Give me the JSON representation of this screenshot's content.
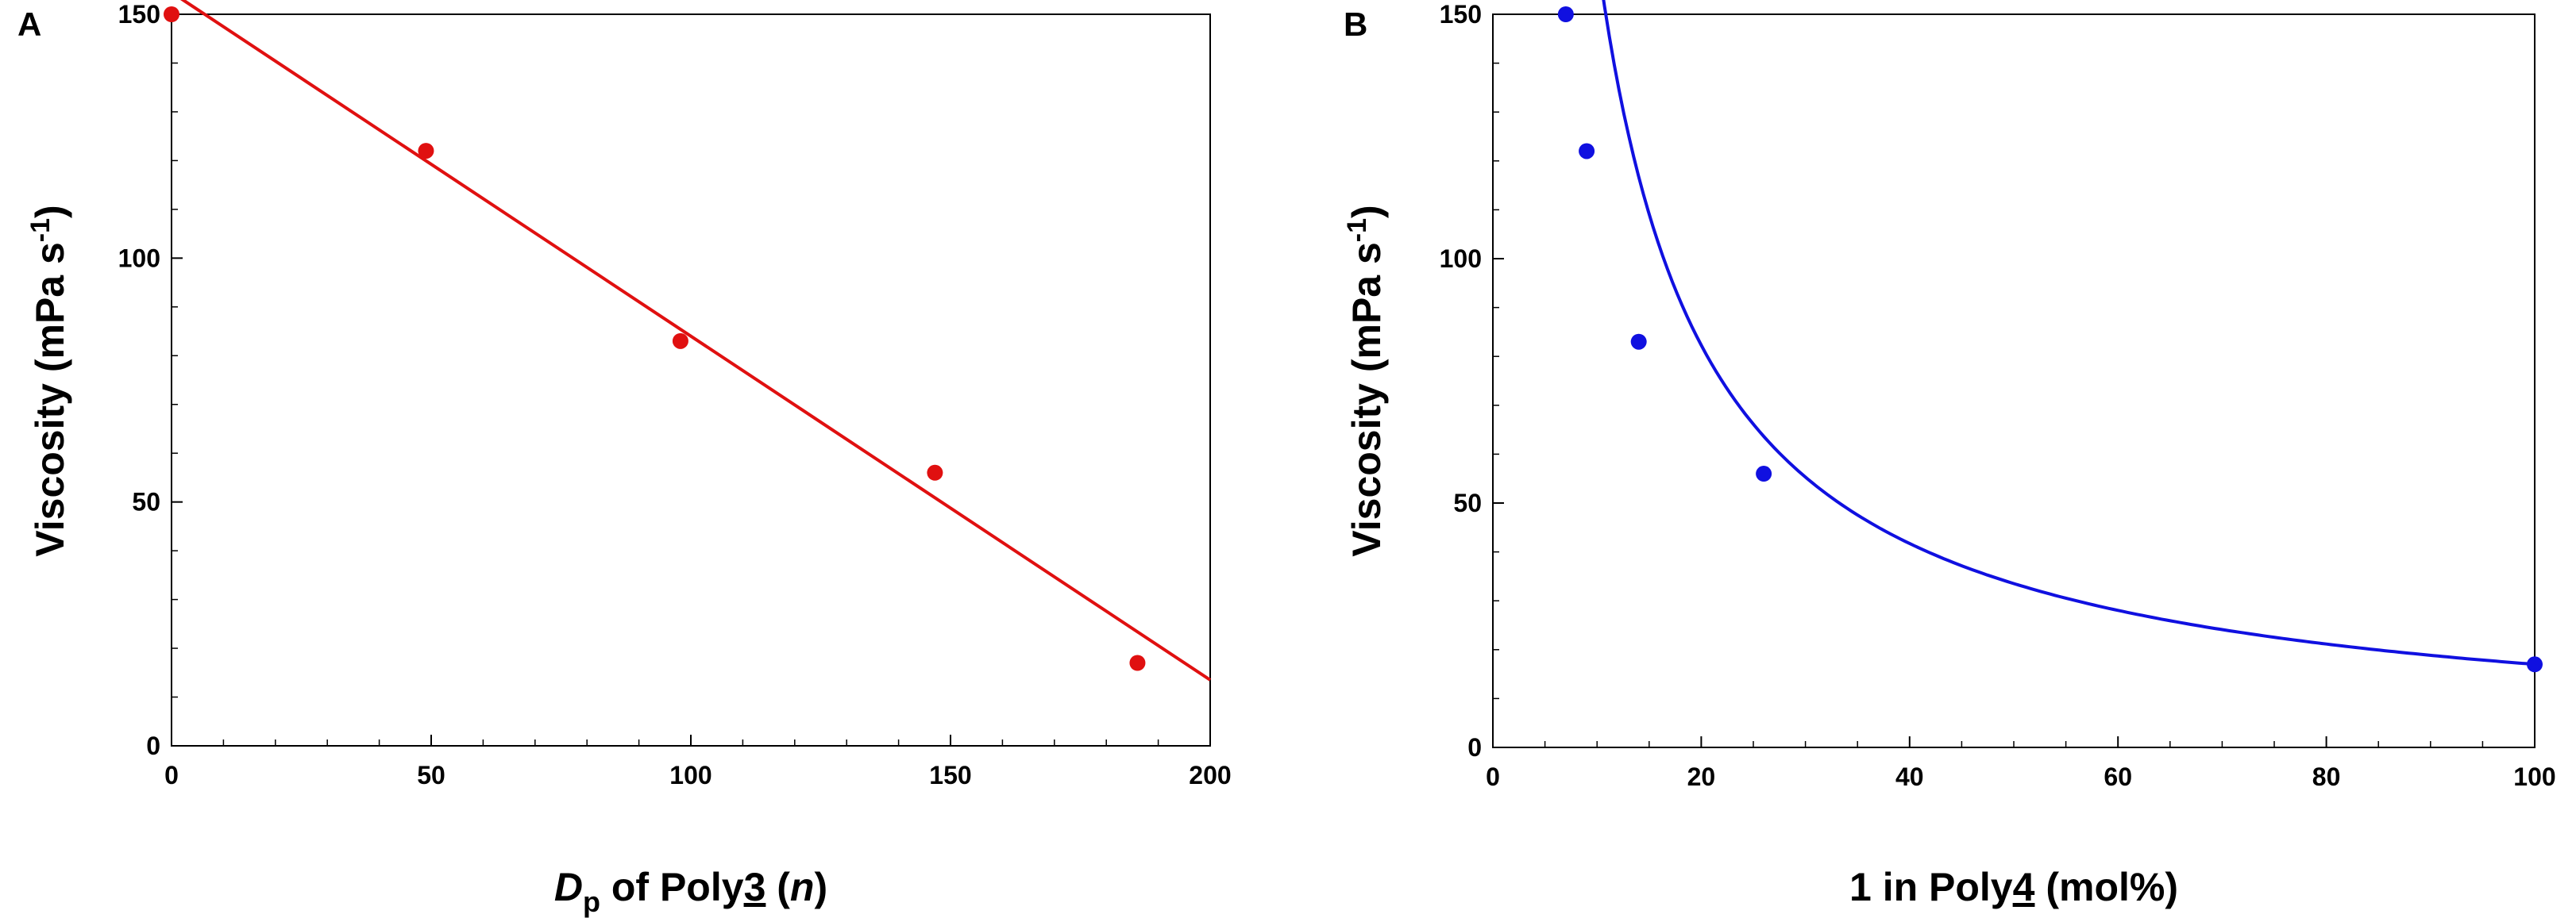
{
  "chart_data": [
    {
      "panel_label": "A",
      "type": "scatter",
      "xlabel": {
        "d": "D",
        "p": "p",
        "of": " of Poly",
        "num": "3",
        "open": " (",
        "n": "n",
        "close": ")"
      },
      "ylabel": {
        "main": "Viscosity (mPa s",
        "sup": "-1",
        "close": ")"
      },
      "xlim": [
        0,
        200
      ],
      "ylim": [
        0,
        150
      ],
      "xticks": [
        0,
        50,
        100,
        150,
        200
      ],
      "yticks": [
        0,
        50,
        100,
        150
      ],
      "xtick_labels": [
        "0",
        "50",
        "100",
        "150",
        "200"
      ],
      "ytick_labels": [
        "0",
        "50",
        "100",
        "150"
      ],
      "grid": false,
      "color": "#e01010",
      "series": [
        {
          "x": [
            0,
            49,
            98,
            147,
            186
          ],
          "y": [
            150,
            122,
            83,
            56,
            17
          ]
        }
      ],
      "fit": {
        "kind": "linear",
        "slope": -0.705,
        "intercept": 154.5,
        "x_range": [
          0,
          200
        ]
      }
    },
    {
      "panel_label": "B",
      "type": "scatter",
      "xlabel": {
        "pre": "1 in Poly",
        "num": "4",
        "post": " (mol%)"
      },
      "ylabel": {
        "main": "Viscosity (mPa s",
        "sup": "-1",
        "close": ")"
      },
      "xlim": [
        0,
        100
      ],
      "ylim": [
        0,
        150
      ],
      "xticks": [
        0,
        20,
        40,
        60,
        80,
        100
      ],
      "yticks": [
        0,
        50,
        100,
        150
      ],
      "xtick_labels": [
        "0",
        "20",
        "40",
        "60",
        "80",
        "100"
      ],
      "ytick_labels": [
        "0",
        "50",
        "100",
        "150"
      ],
      "grid": false,
      "color": "#1010e0",
      "series": [
        {
          "x": [
            7,
            9,
            14,
            26,
            100
          ],
          "y": [
            150,
            122,
            83,
            56,
            17
          ]
        }
      ],
      "fit": {
        "kind": "power",
        "a": 1550,
        "b": -0.98,
        "x_range": [
          7,
          100
        ]
      }
    }
  ]
}
